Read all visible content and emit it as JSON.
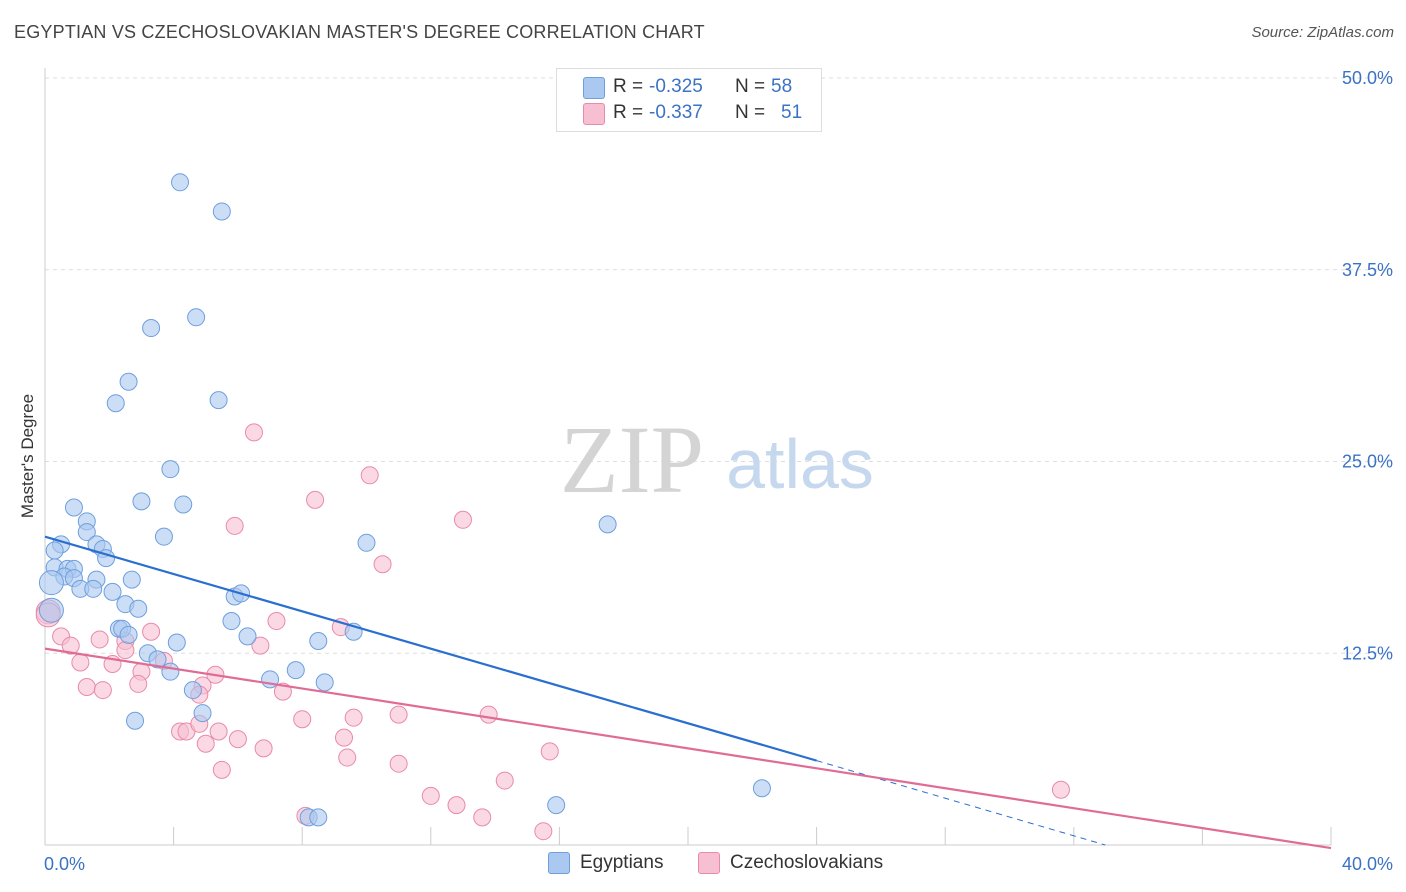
{
  "title": "EGYPTIAN VS CZECHOSLOVAKIAN MASTER'S DEGREE CORRELATION CHART",
  "source": "Source: ZipAtlas.com",
  "watermark": {
    "zip": "ZIP",
    "atlas": "atlas"
  },
  "colors": {
    "blue_fill": "#aac8f0",
    "blue_stroke": "#6e9fde",
    "blue_line": "#2a6fcf",
    "pink_fill": "#f7c0d2",
    "pink_stroke": "#e98aaa",
    "pink_line": "#e06c96",
    "axis_text": "#3b72c4",
    "grid": "#dddddd"
  },
  "legend": {
    "rows": [
      {
        "r_label": "R =",
        "r_value": "-0.325",
        "n_label": "N =",
        "n_value": "58",
        "series": "Egyptians"
      },
      {
        "r_label": "R =",
        "r_value": "-0.337",
        "n_label": "N =",
        "n_value": "51",
        "series": "Czechoslovakians"
      }
    ]
  },
  "chart_data": {
    "type": "scatter",
    "title": "EGYPTIAN VS CZECHOSLOVAKIAN MASTER'S DEGREE CORRELATION CHART",
    "xlabel": "",
    "ylabel": "Master's Degree",
    "xlim": [
      0,
      40
    ],
    "ylim": [
      0,
      50
    ],
    "x_tick_labels": [
      "0.0%",
      "40.0%"
    ],
    "y_ticks": [
      12.5,
      25.0,
      37.5,
      50.0
    ],
    "y_tick_labels": [
      "12.5%",
      "25.0%",
      "37.5%",
      "50.0%"
    ],
    "grid": true,
    "legend_position": "bottom",
    "series": [
      {
        "name": "Egyptians",
        "r": -0.325,
        "n": 58,
        "trend": {
          "x": [
            0,
            24
          ],
          "y": [
            20.1,
            5.5
          ],
          "dashed_extension": {
            "x": [
              24,
              40
            ],
            "y": [
              5.5,
              -4.3
            ]
          }
        },
        "points": [
          [
            4.2,
            43.2
          ],
          [
            5.5,
            41.3
          ],
          [
            3.3,
            33.7
          ],
          [
            4.7,
            34.4
          ],
          [
            2.6,
            30.2
          ],
          [
            2.2,
            28.8
          ],
          [
            5.4,
            29.0
          ],
          [
            3.9,
            24.5
          ],
          [
            3.0,
            22.4
          ],
          [
            4.3,
            22.2
          ],
          [
            0.9,
            22.0
          ],
          [
            1.3,
            21.1
          ],
          [
            1.3,
            20.4
          ],
          [
            0.5,
            19.6
          ],
          [
            1.6,
            19.6
          ],
          [
            1.8,
            19.3
          ],
          [
            0.3,
            19.2
          ],
          [
            3.7,
            20.1
          ],
          [
            10.0,
            19.7
          ],
          [
            0.3,
            18.1
          ],
          [
            1.9,
            18.7
          ],
          [
            0.7,
            18.0
          ],
          [
            0.9,
            18.0
          ],
          [
            0.6,
            17.5
          ],
          [
            0.9,
            17.4
          ],
          [
            1.6,
            17.3
          ],
          [
            2.7,
            17.3
          ],
          [
            0.2,
            17.1
          ],
          [
            1.1,
            16.7
          ],
          [
            1.5,
            16.7
          ],
          [
            2.1,
            16.5
          ],
          [
            5.9,
            16.2
          ],
          [
            6.1,
            16.4
          ],
          [
            2.5,
            15.7
          ],
          [
            0.2,
            15.3
          ],
          [
            2.9,
            15.4
          ],
          [
            5.8,
            14.6
          ],
          [
            2.3,
            14.1
          ],
          [
            2.4,
            14.1
          ],
          [
            2.6,
            13.7
          ],
          [
            6.3,
            13.6
          ],
          [
            9.6,
            13.9
          ],
          [
            4.1,
            13.2
          ],
          [
            8.5,
            13.3
          ],
          [
            3.2,
            12.5
          ],
          [
            3.5,
            12.1
          ],
          [
            3.9,
            11.3
          ],
          [
            7.0,
            10.8
          ],
          [
            7.8,
            11.4
          ],
          [
            8.7,
            10.6
          ],
          [
            4.6,
            10.1
          ],
          [
            4.9,
            8.6
          ],
          [
            2.8,
            8.1
          ],
          [
            17.5,
            20.9
          ],
          [
            22.3,
            3.7
          ],
          [
            15.9,
            2.6
          ],
          [
            8.2,
            1.8
          ],
          [
            8.5,
            1.8
          ]
        ]
      },
      {
        "name": "Czechoslovakians",
        "r": -0.337,
        "n": 51,
        "trend": {
          "x": [
            0,
            40
          ],
          "y": [
            12.8,
            -0.2
          ]
        },
        "points": [
          [
            6.5,
            26.9
          ],
          [
            10.1,
            24.1
          ],
          [
            8.4,
            22.5
          ],
          [
            13.0,
            21.2
          ],
          [
            5.9,
            20.8
          ],
          [
            10.5,
            18.3
          ],
          [
            0.1,
            15.2
          ],
          [
            0.5,
            13.6
          ],
          [
            0.8,
            13.0
          ],
          [
            1.7,
            13.4
          ],
          [
            2.5,
            13.3
          ],
          [
            2.5,
            12.7
          ],
          [
            3.3,
            13.9
          ],
          [
            1.1,
            11.9
          ],
          [
            2.1,
            11.8
          ],
          [
            3.7,
            12.0
          ],
          [
            3.0,
            11.3
          ],
          [
            1.3,
            10.3
          ],
          [
            1.8,
            10.1
          ],
          [
            2.9,
            10.5
          ],
          [
            4.9,
            10.4
          ],
          [
            5.3,
            11.1
          ],
          [
            6.7,
            13.0
          ],
          [
            7.2,
            14.6
          ],
          [
            9.2,
            14.2
          ],
          [
            4.8,
            9.8
          ],
          [
            7.4,
            10.0
          ],
          [
            4.2,
            7.4
          ],
          [
            4.4,
            7.4
          ],
          [
            4.8,
            7.9
          ],
          [
            5.4,
            7.4
          ],
          [
            8.0,
            8.2
          ],
          [
            9.6,
            8.3
          ],
          [
            11.0,
            8.5
          ],
          [
            13.8,
            8.5
          ],
          [
            5.0,
            6.6
          ],
          [
            6.0,
            6.9
          ],
          [
            6.8,
            6.3
          ],
          [
            9.3,
            7.0
          ],
          [
            9.4,
            5.7
          ],
          [
            11.0,
            5.3
          ],
          [
            15.7,
            6.1
          ],
          [
            5.5,
            4.9
          ],
          [
            14.3,
            4.2
          ],
          [
            12.0,
            3.2
          ],
          [
            12.8,
            2.6
          ],
          [
            13.6,
            1.8
          ],
          [
            15.5,
            0.9
          ],
          [
            8.1,
            1.9
          ],
          [
            31.6,
            3.6
          ],
          [
            0.1,
            15.0
          ]
        ]
      }
    ]
  }
}
